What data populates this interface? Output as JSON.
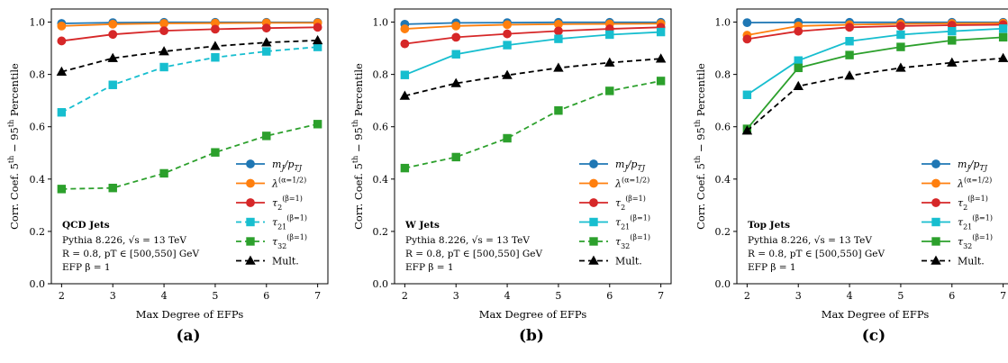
{
  "chart_data": [
    {
      "type": "line",
      "subfig_label": "(a)",
      "xlabel": "Max Degree of EFPs",
      "ylabel": "Corr. Coef. 5th − 95th Percentile",
      "x": [
        2,
        3,
        4,
        5,
        6,
        7
      ],
      "xlim": [
        1.8,
        7.2
      ],
      "ylim": [
        0.0,
        1.05
      ],
      "xticks": [
        "2",
        "3",
        "4",
        "5",
        "6",
        "7"
      ],
      "yticks": [
        "0.0",
        "0.2",
        "0.4",
        "0.6",
        "0.8",
        "1.0"
      ],
      "annotation": {
        "title": "QCD Jets",
        "lines": [
          "Pythia 8.226, √s = 13 TeV",
          "R = 0.8, pT ∈ [500,550] GeV",
          "EFP β = 1"
        ]
      },
      "legend_position": "lower-right",
      "series": [
        {
          "name": "mJ/pTJ",
          "color": "#1f77b4",
          "marker": "circle",
          "dash": false,
          "values": [
            0.995,
            0.998,
            0.999,
            0.999,
            0.999,
            0.999
          ]
        },
        {
          "name": "λ(α=1/2)",
          "color": "#ff7f0e",
          "marker": "circle",
          "dash": false,
          "values": [
            0.985,
            0.992,
            0.995,
            0.996,
            0.997,
            0.997
          ]
        },
        {
          "name": "τ2(β=1)",
          "color": "#d62728",
          "marker": "circle",
          "dash": false,
          "values": [
            0.928,
            0.953,
            0.967,
            0.973,
            0.977,
            0.98
          ]
        },
        {
          "name": "τ21(β=1)",
          "color": "#17becf",
          "marker": "square",
          "dash": true,
          "values": [
            0.655,
            0.76,
            0.828,
            0.865,
            0.888,
            0.905
          ]
        },
        {
          "name": "τ32(β=1)",
          "color": "#2ca02c",
          "marker": "square",
          "dash": true,
          "values": [
            0.362,
            0.366,
            0.422,
            0.502,
            0.565,
            0.61
          ]
        },
        {
          "name": "Mult.",
          "color": "#000000",
          "marker": "triangle",
          "dash": true,
          "values": [
            0.81,
            0.862,
            0.888,
            0.908,
            0.922,
            0.93
          ]
        }
      ]
    },
    {
      "type": "line",
      "subfig_label": "(b)",
      "xlabel": "Max Degree of EFPs",
      "ylabel": "Corr. Coef. 5th − 95th Percentile",
      "x": [
        2,
        3,
        4,
        5,
        6,
        7
      ],
      "xlim": [
        1.8,
        7.2
      ],
      "ylim": [
        0.0,
        1.05
      ],
      "xticks": [
        "2",
        "3",
        "4",
        "5",
        "6",
        "7"
      ],
      "yticks": [
        "0.0",
        "0.2",
        "0.4",
        "0.6",
        "0.8",
        "1.0"
      ],
      "annotation": {
        "title": "W Jets",
        "lines": [
          "Pythia 8.226, √s = 13 TeV",
          "R = 0.8, pT ∈ [500,550] GeV",
          "EFP β = 1"
        ]
      },
      "legend_position": "lower-right",
      "series": [
        {
          "name": "mJ/pTJ",
          "color": "#1f77b4",
          "marker": "circle",
          "dash": false,
          "values": [
            0.992,
            0.997,
            0.998,
            0.999,
            0.999,
            0.999
          ]
        },
        {
          "name": "λ(α=1/2)",
          "color": "#ff7f0e",
          "marker": "circle",
          "dash": false,
          "values": [
            0.974,
            0.985,
            0.99,
            0.992,
            0.993,
            0.994
          ]
        },
        {
          "name": "τ2(β=1)",
          "color": "#d62728",
          "marker": "circle",
          "dash": false,
          "values": [
            0.917,
            0.942,
            0.955,
            0.966,
            0.974,
            0.98
          ]
        },
        {
          "name": "τ21(β=1)",
          "color": "#17becf",
          "marker": "square",
          "dash": false,
          "values": [
            0.798,
            0.877,
            0.912,
            0.936,
            0.952,
            0.962
          ]
        },
        {
          "name": "τ32(β=1)",
          "color": "#2ca02c",
          "marker": "square",
          "dash": true,
          "values": [
            0.442,
            0.484,
            0.556,
            0.662,
            0.737,
            0.775
          ]
        },
        {
          "name": "Mult.",
          "color": "#000000",
          "marker": "triangle",
          "dash": true,
          "values": [
            0.718,
            0.766,
            0.797,
            0.825,
            0.845,
            0.86
          ]
        }
      ]
    },
    {
      "type": "line",
      "subfig_label": "(c)",
      "xlabel": "Max Degree of EFPs",
      "ylabel": "Corr. Coef. 5th − 95th Percentile",
      "x": [
        2,
        3,
        4,
        5,
        6,
        7
      ],
      "xlim": [
        1.8,
        7.2
      ],
      "ylim": [
        0.0,
        1.05
      ],
      "xticks": [
        "2",
        "3",
        "4",
        "5",
        "6",
        "7"
      ],
      "yticks": [
        "0.0",
        "0.2",
        "0.4",
        "0.6",
        "0.8",
        "1.0"
      ],
      "annotation": {
        "title": "Top Jets",
        "lines": [
          "Pythia 8.226, √s = 13 TeV",
          "R = 0.8, pT ∈ [500,550] GeV",
          "EFP β = 1"
        ]
      },
      "legend_position": "lower-right",
      "series": [
        {
          "name": "mJ/pTJ",
          "color": "#1f77b4",
          "marker": "circle",
          "dash": false,
          "values": [
            0.998,
            0.999,
            0.999,
            0.999,
            0.999,
            0.999
          ]
        },
        {
          "name": "λ(α=1/2)",
          "color": "#ff7f0e",
          "marker": "circle",
          "dash": false,
          "values": [
            0.95,
            0.985,
            0.99,
            0.993,
            0.995,
            0.996
          ]
        },
        {
          "name": "τ2(β=1)",
          "color": "#d62728",
          "marker": "circle",
          "dash": false,
          "values": [
            0.935,
            0.965,
            0.98,
            0.985,
            0.988,
            0.99
          ]
        },
        {
          "name": "τ21(β=1)",
          "color": "#17becf",
          "marker": "square",
          "dash": false,
          "values": [
            0.722,
            0.853,
            0.927,
            0.952,
            0.965,
            0.975
          ]
        },
        {
          "name": "τ32(β=1)",
          "color": "#2ca02c",
          "marker": "square",
          "dash": false,
          "values": [
            0.592,
            0.825,
            0.874,
            0.905,
            0.93,
            0.942
          ]
        },
        {
          "name": "Mult.",
          "color": "#000000",
          "marker": "triangle",
          "dash": true,
          "values": [
            0.585,
            0.755,
            0.795,
            0.825,
            0.845,
            0.862
          ]
        }
      ]
    }
  ]
}
